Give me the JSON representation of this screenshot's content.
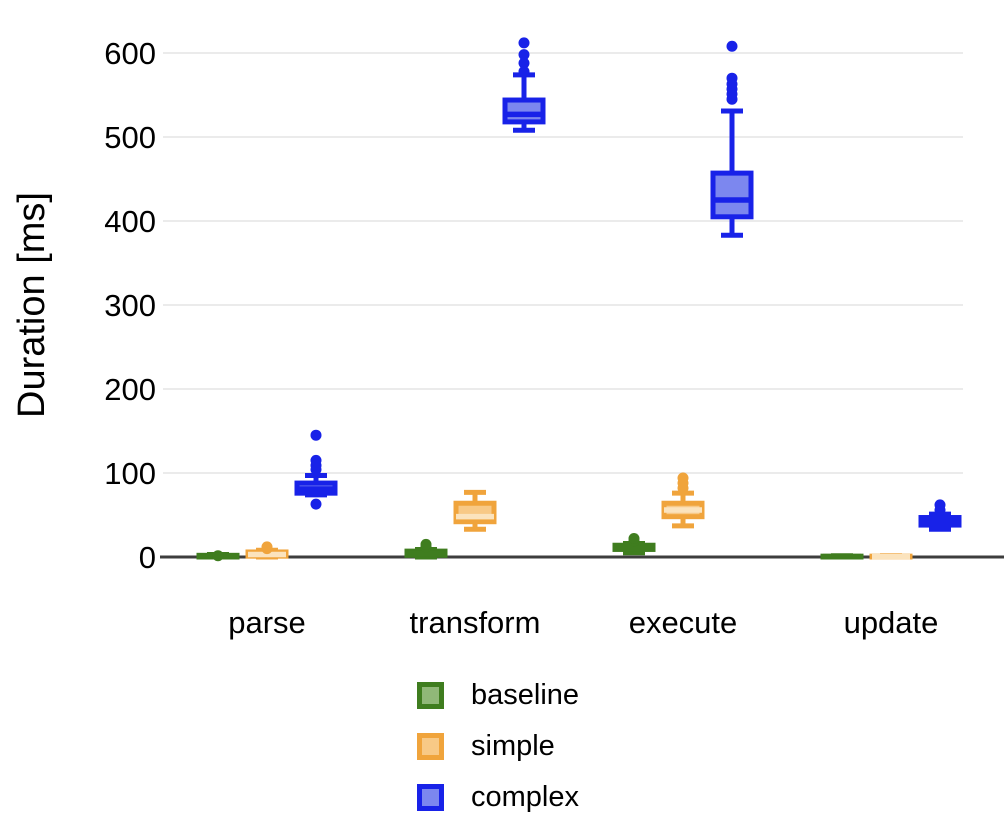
{
  "chart_data": {
    "type": "boxplot",
    "title": "",
    "xlabel": "",
    "ylabel": "Duration [ms]",
    "categories": [
      "parse",
      "transform",
      "execute",
      "update"
    ],
    "y_ticks": [
      0,
      100,
      200,
      300,
      400,
      500,
      600
    ],
    "ylim": [
      0,
      650
    ],
    "grid": "horizontal-light-gray",
    "legend_position": "bottom-center",
    "colors": {
      "gridline": "#ebebeb",
      "axis_line": "#3d3d3d",
      "text": "#000000"
    },
    "series": [
      {
        "name": "baseline",
        "stroke": "#3f7d1f",
        "fill": "#90b878",
        "boxes": [
          {
            "category": "parse",
            "min": 0,
            "q1": 0,
            "med": 1,
            "q3": 2,
            "max": 3,
            "outliers": [
              1.5
            ]
          },
          {
            "category": "transform",
            "min": 0,
            "q1": 2,
            "med": 4,
            "q3": 7,
            "max": 9,
            "outliers": [
              12,
              15
            ]
          },
          {
            "category": "execute",
            "min": 5,
            "q1": 9,
            "med": 11,
            "q3": 14,
            "max": 16,
            "outliers": [
              19,
              22
            ]
          },
          {
            "category": "update",
            "min": 0,
            "q1": 0,
            "med": 0.5,
            "q3": 1,
            "max": 1.5,
            "outliers": []
          }
        ]
      },
      {
        "name": "simple",
        "stroke": "#f0a43c",
        "fill": "#f8c986",
        "median_color": "#fbe3bd",
        "boxes": [
          {
            "category": "parse",
            "min": 0,
            "q1": 1,
            "med": 3,
            "q3": 6,
            "max": 8,
            "outliers": [
              10,
              12
            ]
          },
          {
            "category": "transform",
            "min": 33,
            "q1": 42,
            "med": 48,
            "q3": 64,
            "max": 77,
            "outliers": []
          },
          {
            "category": "execute",
            "min": 37,
            "q1": 48,
            "med": 56,
            "q3": 64,
            "max": 76,
            "outliers": [
              82,
              88,
              94
            ]
          },
          {
            "category": "update",
            "min": 0,
            "q1": 0,
            "med": 0.5,
            "q3": 1,
            "max": 1.5,
            "outliers": []
          }
        ]
      },
      {
        "name": "complex",
        "stroke": "#1822e8",
        "fill": "#7c87ef",
        "boxes": [
          {
            "category": "parse",
            "min": 74,
            "q1": 76,
            "med": 81,
            "q3": 88,
            "max": 97,
            "outliers": [
              63,
              104,
              109,
              115,
              145
            ]
          },
          {
            "category": "transform",
            "min": 508,
            "q1": 518,
            "med": 527,
            "q3": 544,
            "max": 574,
            "outliers": [
              578,
              588,
              598,
              612
            ]
          },
          {
            "category": "execute",
            "min": 383,
            "q1": 405,
            "med": 425,
            "q3": 457,
            "max": 531,
            "outliers": [
              545,
              551,
              557,
              563,
              570,
              608
            ]
          },
          {
            "category": "update",
            "min": 33,
            "q1": 38,
            "med": 42,
            "q3": 47,
            "max": 51,
            "outliers": [
              56,
              62
            ]
          }
        ]
      }
    ]
  }
}
